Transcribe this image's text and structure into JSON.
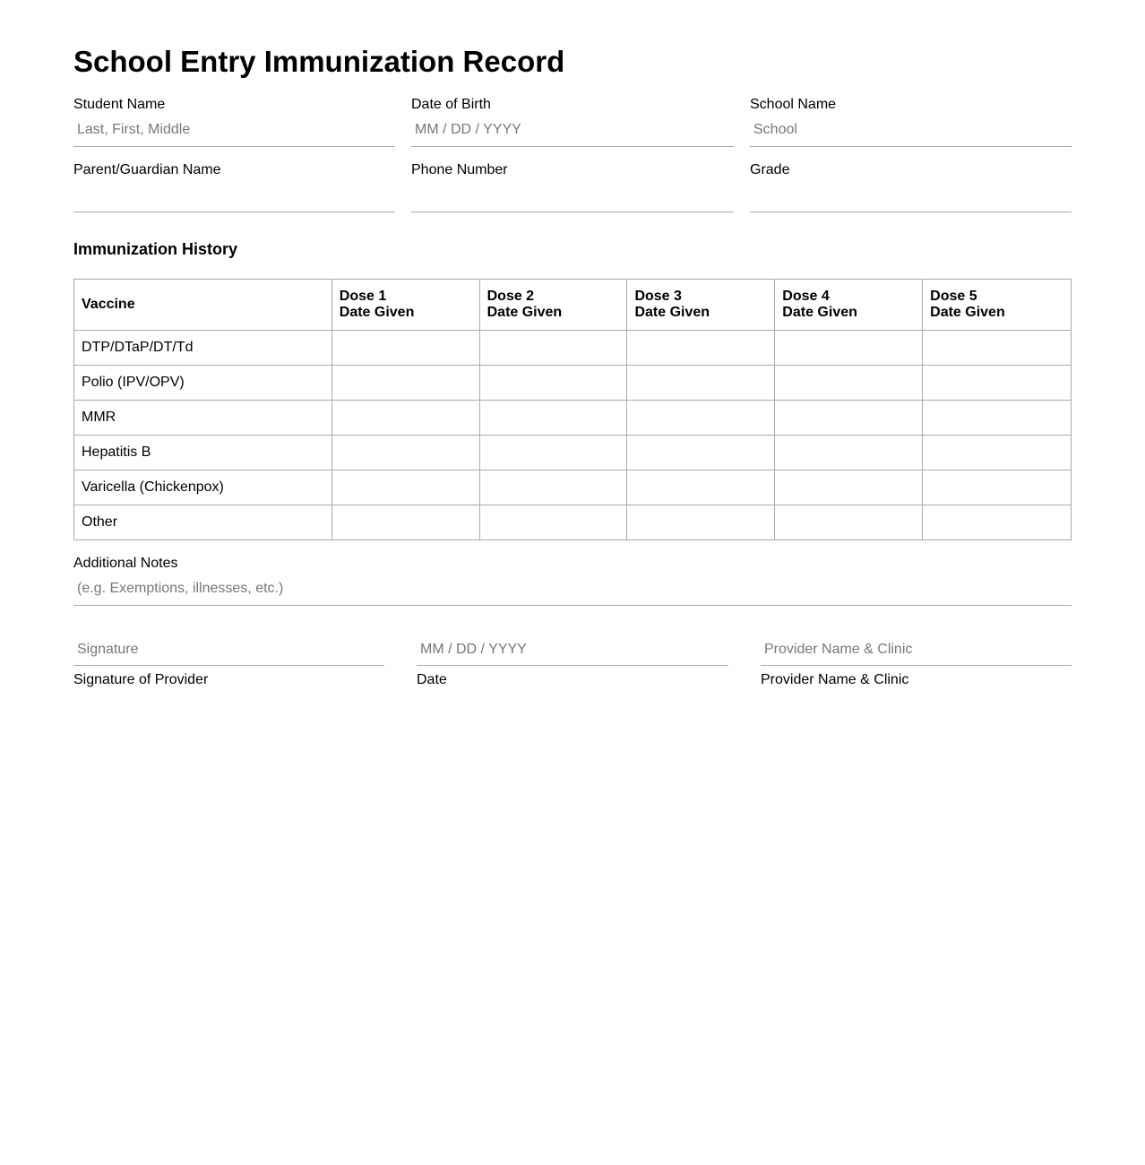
{
  "title": "School Entry Immunization Record",
  "fields_row1": [
    {
      "label": "Student Name",
      "placeholder": "Last, First, Middle",
      "value": ""
    },
    {
      "label": "Date of Birth",
      "placeholder": "MM / DD / YYYY",
      "value": ""
    },
    {
      "label": "School Name",
      "placeholder": "School",
      "value": ""
    }
  ],
  "fields_row2": [
    {
      "label": "Parent/Guardian Name",
      "placeholder": "",
      "value": ""
    },
    {
      "label": "Phone Number",
      "placeholder": "",
      "value": ""
    },
    {
      "label": "Grade",
      "placeholder": "",
      "value": ""
    }
  ],
  "history": {
    "heading": "Immunization History",
    "columns": [
      {
        "line1": "Vaccine",
        "line2": ""
      },
      {
        "line1": "Dose 1",
        "line2": "Date Given"
      },
      {
        "line1": "Dose 2",
        "line2": "Date Given"
      },
      {
        "line1": "Dose 3",
        "line2": "Date Given"
      },
      {
        "line1": "Dose 4",
        "line2": "Date Given"
      },
      {
        "line1": "Dose 5",
        "line2": "Date Given"
      }
    ],
    "rows": [
      {
        "vaccine": "DTP/DTaP/DT/Td",
        "doses": [
          "",
          "",
          "",
          "",
          ""
        ]
      },
      {
        "vaccine": "Polio (IPV/OPV)",
        "doses": [
          "",
          "",
          "",
          "",
          ""
        ]
      },
      {
        "vaccine": "MMR",
        "doses": [
          "",
          "",
          "",
          "",
          ""
        ]
      },
      {
        "vaccine": "Hepatitis B",
        "doses": [
          "",
          "",
          "",
          "",
          ""
        ]
      },
      {
        "vaccine": "Varicella (Chickenpox)",
        "doses": [
          "",
          "",
          "",
          "",
          ""
        ]
      },
      {
        "vaccine": "Other",
        "doses": [
          "",
          "",
          "",
          "",
          ""
        ]
      }
    ]
  },
  "notes": {
    "label": "Additional Notes",
    "placeholder": "(e.g. Exemptions, illnesses, etc.)",
    "value": ""
  },
  "signatures": [
    {
      "placeholder": "Signature",
      "caption": "Signature of Provider"
    },
    {
      "placeholder": "MM / DD / YYYY",
      "caption": "Date"
    },
    {
      "placeholder": "Provider Name & Clinic",
      "caption": "Provider Name & Clinic"
    }
  ]
}
